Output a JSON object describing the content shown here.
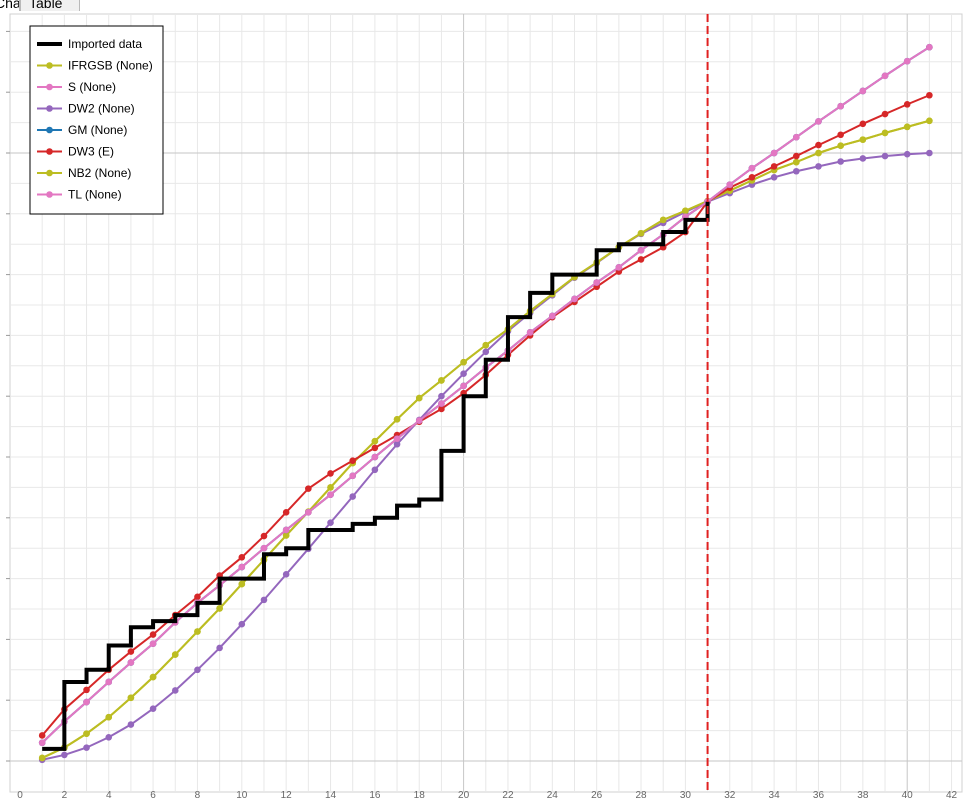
{
  "tabs": [
    {
      "label": "Chart"
    },
    {
      "label": "Table"
    }
  ],
  "chart_data": {
    "type": "line",
    "title": "",
    "xlabel": "",
    "ylabel": "",
    "xlim": [
      0,
      42
    ],
    "ylim": [
      0,
      12
    ],
    "x_ticks": [
      0,
      2,
      4,
      6,
      8,
      10,
      12,
      14,
      16,
      18,
      20,
      22,
      24,
      26,
      28,
      30,
      32,
      34,
      36,
      38,
      40,
      42
    ],
    "grid": true,
    "legend_position": "top-left",
    "vline": {
      "x": 31,
      "color": "#e02020",
      "style": "dashed"
    },
    "series": [
      {
        "name": "Imported data",
        "color": "#000000",
        "style": "step",
        "x": [
          1,
          2,
          3,
          4,
          5,
          6,
          7,
          8,
          9,
          10,
          11,
          12,
          13,
          14,
          15,
          16,
          17,
          18,
          19,
          20,
          21,
          22,
          23,
          24,
          25,
          26,
          27,
          28,
          29,
          30,
          31
        ],
        "y": [
          0.2,
          1.3,
          1.5,
          1.9,
          2.2,
          2.3,
          2.4,
          2.6,
          3.0,
          3.0,
          3.4,
          3.5,
          3.8,
          3.8,
          3.9,
          4.0,
          4.2,
          4.3,
          5.1,
          6.0,
          6.6,
          7.3,
          7.7,
          8.0,
          8.0,
          8.4,
          8.5,
          8.5,
          8.7,
          8.9,
          9.2
        ]
      },
      {
        "name": "IFRGSB (None)",
        "color": "#bcbd22",
        "x": [
          1,
          2,
          3,
          4,
          5,
          6,
          7,
          8,
          9,
          10,
          11,
          12,
          13,
          14,
          15,
          16,
          17,
          18,
          19,
          20,
          21,
          22,
          23,
          24,
          25,
          26,
          27,
          28,
          29,
          30,
          31,
          32,
          33,
          34,
          35,
          36,
          37,
          38,
          39,
          40,
          41
        ],
        "y": [
          0.05,
          0.22,
          0.45,
          0.72,
          1.04,
          1.38,
          1.75,
          2.13,
          2.51,
          2.91,
          3.31,
          3.71,
          4.1,
          4.5,
          4.9,
          5.26,
          5.62,
          5.97,
          6.26,
          6.56,
          6.84,
          7.1,
          7.4,
          7.68,
          7.96,
          8.2,
          8.45,
          8.68,
          8.9,
          9.05,
          9.21,
          9.38,
          9.55,
          9.72,
          9.85,
          10.0,
          10.12,
          10.22,
          10.33,
          10.43,
          10.53
        ]
      },
      {
        "name": "S (None)",
        "color": "#e377c2",
        "x": [
          1,
          2,
          3,
          4,
          5,
          6,
          7,
          8,
          9,
          10,
          11,
          12,
          13,
          14,
          15,
          16,
          17,
          18,
          19,
          20,
          21,
          22,
          23,
          24,
          25,
          26,
          27,
          28,
          29,
          30,
          31,
          32,
          33,
          34,
          35,
          36,
          37,
          38,
          39,
          40,
          41
        ],
        "y": [
          0.3,
          0.65,
          0.97,
          1.3,
          1.62,
          1.93,
          2.28,
          2.6,
          2.89,
          3.19,
          3.5,
          3.8,
          4.09,
          4.38,
          4.69,
          5.0,
          5.3,
          5.6,
          5.88,
          6.17,
          6.47,
          6.75,
          7.05,
          7.32,
          7.6,
          7.87,
          8.12,
          8.4,
          8.66,
          8.95,
          9.2,
          9.48,
          9.75,
          10.0,
          10.26,
          10.52,
          10.77,
          11.02,
          11.27,
          11.51,
          11.74
        ]
      },
      {
        "name": "DW2 (None)",
        "color": "#9467bd",
        "x": [
          1,
          2,
          3,
          4,
          5,
          6,
          7,
          8,
          9,
          10,
          11,
          12,
          13,
          14,
          15,
          16,
          17,
          18,
          19,
          20,
          21,
          22,
          23,
          24,
          25,
          26,
          27,
          28,
          29,
          30,
          31,
          32,
          33,
          34,
          35,
          36,
          37,
          38,
          39,
          40,
          41
        ],
        "y": [
          0.02,
          0.1,
          0.22,
          0.39,
          0.6,
          0.86,
          1.16,
          1.5,
          1.86,
          2.25,
          2.65,
          3.07,
          3.49,
          3.92,
          4.35,
          4.79,
          5.21,
          5.61,
          6.0,
          6.37,
          6.73,
          7.07,
          7.37,
          7.66,
          7.95,
          8.19,
          8.45,
          8.67,
          8.85,
          9.03,
          9.2,
          9.34,
          9.48,
          9.6,
          9.7,
          9.78,
          9.86,
          9.91,
          9.95,
          9.98,
          10.0
        ]
      },
      {
        "name": "GM (None)",
        "color": "#1f77b4",
        "x": [
          1,
          2,
          3,
          4,
          5,
          6,
          7,
          8,
          9,
          10,
          11,
          12,
          13,
          14,
          15,
          16,
          17,
          18,
          19,
          20,
          21,
          22,
          23,
          24,
          25,
          26,
          27,
          28,
          29,
          30,
          31,
          32,
          33,
          34,
          35,
          36,
          37,
          38,
          39,
          40,
          41
        ],
        "y": [
          0.3,
          0.65,
          0.97,
          1.3,
          1.62,
          1.93,
          2.28,
          2.6,
          2.89,
          3.19,
          3.5,
          3.8,
          4.09,
          4.38,
          4.69,
          5.0,
          5.3,
          5.6,
          5.88,
          6.17,
          6.47,
          6.75,
          7.05,
          7.32,
          7.6,
          7.87,
          8.12,
          8.4,
          8.66,
          8.95,
          9.2,
          9.48,
          9.75,
          10.0,
          10.26,
          10.52,
          10.77,
          11.02,
          11.27,
          11.51,
          11.74
        ]
      },
      {
        "name": "DW3 (E)",
        "color": "#d62728",
        "x": [
          1,
          2,
          3,
          4,
          5,
          6,
          7,
          8,
          9,
          10,
          11,
          12,
          13,
          14,
          15,
          16,
          17,
          18,
          19,
          20,
          21,
          22,
          23,
          24,
          25,
          26,
          27,
          28,
          29,
          30,
          31,
          32,
          33,
          34,
          35,
          36,
          37,
          38,
          39,
          40,
          41
        ],
        "y": [
          0.42,
          0.85,
          1.17,
          1.5,
          1.8,
          2.08,
          2.4,
          2.7,
          3.05,
          3.35,
          3.7,
          4.09,
          4.48,
          4.73,
          4.94,
          5.15,
          5.36,
          5.58,
          5.79,
          6.05,
          6.35,
          6.68,
          7.0,
          7.3,
          7.55,
          7.8,
          8.05,
          8.25,
          8.45,
          8.7,
          9.2,
          9.43,
          9.6,
          9.78,
          9.95,
          10.13,
          10.3,
          10.48,
          10.64,
          10.8,
          10.95
        ]
      },
      {
        "name": "NB2 (None)",
        "color": "#bcbd22",
        "x": [
          1,
          2,
          3,
          4,
          5,
          6,
          7,
          8,
          9,
          10,
          11,
          12,
          13,
          14,
          15,
          16,
          17,
          18,
          19,
          20,
          21,
          22,
          23,
          24,
          25,
          26,
          27,
          28,
          29,
          30,
          31,
          32,
          33,
          34,
          35,
          36,
          37,
          38,
          39,
          40,
          41
        ],
        "y": [
          0.05,
          0.22,
          0.45,
          0.72,
          1.04,
          1.38,
          1.75,
          2.13,
          2.51,
          2.91,
          3.31,
          3.71,
          4.1,
          4.5,
          4.9,
          5.26,
          5.62,
          5.97,
          6.26,
          6.56,
          6.84,
          7.1,
          7.4,
          7.68,
          7.96,
          8.2,
          8.45,
          8.68,
          8.9,
          9.05,
          9.21,
          9.38,
          9.55,
          9.72,
          9.85,
          10.0,
          10.12,
          10.22,
          10.33,
          10.43,
          10.53
        ]
      },
      {
        "name": "TL (None)",
        "color": "#e377c2",
        "x": [
          1,
          2,
          3,
          4,
          5,
          6,
          7,
          8,
          9,
          10,
          11,
          12,
          13,
          14,
          15,
          16,
          17,
          18,
          19,
          20,
          21,
          22,
          23,
          24,
          25,
          26,
          27,
          28,
          29,
          30,
          31,
          32,
          33,
          34,
          35,
          36,
          37,
          38,
          39,
          40,
          41
        ],
        "y": [
          0.3,
          0.65,
          0.97,
          1.3,
          1.62,
          1.93,
          2.28,
          2.6,
          2.89,
          3.19,
          3.5,
          3.8,
          4.09,
          4.38,
          4.69,
          5.0,
          5.3,
          5.6,
          5.88,
          6.17,
          6.47,
          6.75,
          7.05,
          7.32,
          7.6,
          7.87,
          8.12,
          8.4,
          8.66,
          8.95,
          9.2,
          9.48,
          9.75,
          10.0,
          10.26,
          10.52,
          10.77,
          11.02,
          11.27,
          11.51,
          11.74
        ]
      }
    ]
  }
}
